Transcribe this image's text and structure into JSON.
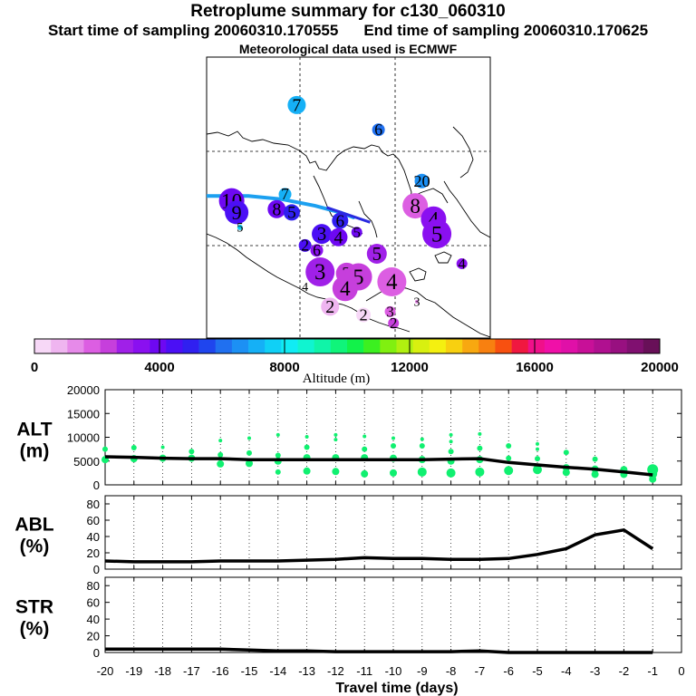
{
  "header": {
    "title": "Retroplume summary for c130_060310",
    "start_label": "Start time of sampling 20060310.170555",
    "end_label": "End time of sampling 20060310.170625",
    "met_label": "Meteorological data used is ECMWF"
  },
  "colorbar": {
    "colors": [
      "#f7d8f7",
      "#efb5f0",
      "#e68ae9",
      "#dc5ee2",
      "#c63fdc",
      "#a020e8",
      "#8a10f0",
      "#6e08f2",
      "#4b0ff5",
      "#3020f0",
      "#1f45ee",
      "#2070f0",
      "#1c90f4",
      "#15b0f6",
      "#10d0f6",
      "#10ecf4",
      "#10f4d0",
      "#10f4a8",
      "#10f47a",
      "#12f24a",
      "#3cf020",
      "#80f010",
      "#b0f010",
      "#d8f010",
      "#f4f010",
      "#f8d010",
      "#f8a810",
      "#f88010",
      "#f85010",
      "#f01840",
      "#f0108a",
      "#f010a8",
      "#e010a8",
      "#c81098",
      "#b01090",
      "#981080",
      "#801070",
      "#681058"
    ],
    "tick_labels": [
      "0",
      "4000",
      "8000",
      "12000",
      "16000",
      "20000"
    ],
    "label": "Altitude (m)"
  },
  "map": {
    "track_color": "#1ca0f0",
    "markers": [
      {
        "label": "7",
        "lon": -84.6,
        "lat": 27.1,
        "r": 10,
        "alt": 7200
      },
      {
        "label": "6",
        "lon": -79.7,
        "lat": 25.6,
        "r": 7,
        "alt": 6000
      },
      {
        "label": "20",
        "lon": -77.1,
        "lat": 22.5,
        "r": 8,
        "alt": 6800
      },
      {
        "label": "10",
        "lon": -88.5,
        "lat": 21.3,
        "r": 14,
        "alt": 4200
      },
      {
        "label": "9",
        "lon": -88.2,
        "lat": 20.6,
        "r": 13,
        "alt": 4600
      },
      {
        "label": "7",
        "lon": -85.3,
        "lat": 21.7,
        "r": 7,
        "alt": 7000
      },
      {
        "label": "8",
        "lon": -85.8,
        "lat": 20.8,
        "r": 10,
        "alt": 4000
      },
      {
        "label": "5",
        "lon": -84.9,
        "lat": 20.6,
        "r": 9,
        "alt": 4900
      },
      {
        "label": "8",
        "lon": -77.5,
        "lat": 21.0,
        "r": 14,
        "alt": 2000
      },
      {
        "label": "4",
        "lon": -76.4,
        "lat": 20.2,
        "r": 14,
        "alt": 3200
      },
      {
        "label": "5",
        "lon": -76.2,
        "lat": 19.3,
        "r": 16,
        "alt": 3400
      },
      {
        "label": "5",
        "lon": -88.0,
        "lat": 19.7,
        "r": 3,
        "alt": 7800
      },
      {
        "label": "6",
        "lon": -82.0,
        "lat": 20.1,
        "r": 9,
        "alt": 4800
      },
      {
        "label": "5",
        "lon": -81.0,
        "lat": 19.4,
        "r": 6,
        "alt": 3700
      },
      {
        "label": "3",
        "lon": -83.1,
        "lat": 19.3,
        "r": 11,
        "alt": 4300
      },
      {
        "label": "4",
        "lon": -82.1,
        "lat": 19.1,
        "r": 10,
        "alt": 3800
      },
      {
        "label": "2",
        "lon": -84.1,
        "lat": 18.6,
        "r": 7,
        "alt": 4300
      },
      {
        "label": "6",
        "lon": -83.4,
        "lat": 18.3,
        "r": 7,
        "alt": 3600
      },
      {
        "label": "5",
        "lon": -79.8,
        "lat": 18.1,
        "r": 11,
        "alt": 2700
      },
      {
        "label": "4",
        "lon": -74.7,
        "lat": 17.5,
        "r": 6,
        "alt": 3300
      },
      {
        "label": "3",
        "lon": -83.2,
        "lat": 17.0,
        "r": 16,
        "alt": 3000
      },
      {
        "label": "2",
        "lon": -81.6,
        "lat": 16.9,
        "r": 12,
        "alt": 2400
      },
      {
        "label": "5",
        "lon": -80.9,
        "lat": 16.7,
        "r": 15,
        "alt": 2500
      },
      {
        "label": "4",
        "lon": -78.9,
        "lat": 16.4,
        "r": 16,
        "alt": 1800
      },
      {
        "label": "4",
        "lon": -81.7,
        "lat": 16.0,
        "r": 14,
        "alt": 2200
      },
      {
        "label": "4",
        "lon": -84.1,
        "lat": 16.1,
        "r": 1,
        "alt": 1000
      },
      {
        "label": "3",
        "lon": -77.4,
        "lat": 15.2,
        "r": 2,
        "alt": 1500
      },
      {
        "label": "2",
        "lon": -82.6,
        "lat": 14.9,
        "r": 10,
        "alt": 700
      },
      {
        "label": "2",
        "lon": -80.6,
        "lat": 14.4,
        "r": 8,
        "alt": 500
      },
      {
        "label": "3",
        "lon": -79.0,
        "lat": 14.6,
        "r": 6,
        "alt": 1900
      },
      {
        "label": "2",
        "lon": -78.8,
        "lat": 13.9,
        "r": 6,
        "alt": 2600
      }
    ]
  },
  "chart_data": [
    {
      "type": "scatter",
      "name": "ALT",
      "ylabel": "ALT (m)",
      "xlabel": "Travel time (days)",
      "xlim": [
        -20,
        0
      ],
      "ylim": [
        0,
        20000
      ],
      "yticks": [
        0,
        5000,
        10000,
        15000,
        20000
      ],
      "line": {
        "x": [
          -20,
          -19,
          -18,
          -17,
          -16,
          -15,
          -14,
          -13,
          -12,
          -11,
          -10,
          -9,
          -8,
          -7,
          -6,
          -5,
          -4,
          -3,
          -2,
          -1
        ],
        "y": [
          5900,
          5800,
          5600,
          5500,
          5500,
          5300,
          5300,
          5300,
          5300,
          5300,
          5300,
          5300,
          5400,
          5500,
          4700,
          4200,
          3700,
          3300,
          2700,
          2100
        ]
      },
      "points": [
        {
          "x": -20,
          "y": 7500,
          "s": 3
        },
        {
          "x": -20,
          "y": 5300,
          "s": 4
        },
        {
          "x": -19,
          "y": 7800,
          "s": 3
        },
        {
          "x": -19,
          "y": 5500,
          "s": 4
        },
        {
          "x": -18,
          "y": 7900,
          "s": 2
        },
        {
          "x": -18,
          "y": 5600,
          "s": 4
        },
        {
          "x": -17,
          "y": 7000,
          "s": 3
        },
        {
          "x": -17,
          "y": 5600,
          "s": 4
        },
        {
          "x": -16,
          "y": 9300,
          "s": 2
        },
        {
          "x": -16,
          "y": 6300,
          "s": 3
        },
        {
          "x": -16,
          "y": 4400,
          "s": 4
        },
        {
          "x": -15,
          "y": 9800,
          "s": 2
        },
        {
          "x": -15,
          "y": 6700,
          "s": 3
        },
        {
          "x": -15,
          "y": 4500,
          "s": 4
        },
        {
          "x": -14,
          "y": 10500,
          "s": 2
        },
        {
          "x": -14,
          "y": 6200,
          "s": 3
        },
        {
          "x": -14,
          "y": 5000,
          "s": 4
        },
        {
          "x": -14,
          "y": 2700,
          "s": 3
        },
        {
          "x": -13,
          "y": 10100,
          "s": 2
        },
        {
          "x": -13,
          "y": 7900,
          "s": 3
        },
        {
          "x": -13,
          "y": 5700,
          "s": 4
        },
        {
          "x": -13,
          "y": 2900,
          "s": 4
        },
        {
          "x": -12,
          "y": 10500,
          "s": 2
        },
        {
          "x": -12,
          "y": 9500,
          "s": 2
        },
        {
          "x": -12,
          "y": 5700,
          "s": 4
        },
        {
          "x": -12,
          "y": 2800,
          "s": 4
        },
        {
          "x": -11,
          "y": 10200,
          "s": 2
        },
        {
          "x": -11,
          "y": 7500,
          "s": 3
        },
        {
          "x": -11,
          "y": 5700,
          "s": 4
        },
        {
          "x": -11,
          "y": 2300,
          "s": 4
        },
        {
          "x": -10,
          "y": 9800,
          "s": 2
        },
        {
          "x": -10,
          "y": 8200,
          "s": 3
        },
        {
          "x": -10,
          "y": 5600,
          "s": 4
        },
        {
          "x": -10,
          "y": 2500,
          "s": 4
        },
        {
          "x": -9,
          "y": 9600,
          "s": 2
        },
        {
          "x": -9,
          "y": 8200,
          "s": 3
        },
        {
          "x": -9,
          "y": 5300,
          "s": 4
        },
        {
          "x": -9,
          "y": 2700,
          "s": 5
        },
        {
          "x": -8,
          "y": 10500,
          "s": 2
        },
        {
          "x": -8,
          "y": 9100,
          "s": 2
        },
        {
          "x": -8,
          "y": 7000,
          "s": 3
        },
        {
          "x": -8,
          "y": 5000,
          "s": 4
        },
        {
          "x": -8,
          "y": 2500,
          "s": 5
        },
        {
          "x": -7,
          "y": 10700,
          "s": 2
        },
        {
          "x": -7,
          "y": 7700,
          "s": 3
        },
        {
          "x": -7,
          "y": 5300,
          "s": 4
        },
        {
          "x": -7,
          "y": 2700,
          "s": 5
        },
        {
          "x": -6,
          "y": 8200,
          "s": 3
        },
        {
          "x": -6,
          "y": 5600,
          "s": 3
        },
        {
          "x": -6,
          "y": 3000,
          "s": 5
        },
        {
          "x": -5,
          "y": 8600,
          "s": 2
        },
        {
          "x": -5,
          "y": 7500,
          "s": 2
        },
        {
          "x": -5,
          "y": 5500,
          "s": 3
        },
        {
          "x": -5,
          "y": 3200,
          "s": 5
        },
        {
          "x": -4,
          "y": 6800,
          "s": 3
        },
        {
          "x": -4,
          "y": 3600,
          "s": 4
        },
        {
          "x": -4,
          "y": 2600,
          "s": 4
        },
        {
          "x": -3,
          "y": 5400,
          "s": 3
        },
        {
          "x": -3,
          "y": 3300,
          "s": 4
        },
        {
          "x": -3,
          "y": 2200,
          "s": 4
        },
        {
          "x": -2,
          "y": 3200,
          "s": 4
        },
        {
          "x": -2,
          "y": 2200,
          "s": 4
        },
        {
          "x": -1,
          "y": 3200,
          "s": 6
        },
        {
          "x": -1,
          "y": 2300,
          "s": 5
        },
        {
          "x": -1,
          "y": 1200,
          "s": 4
        }
      ],
      "point_color": "#10f070"
    },
    {
      "type": "line",
      "name": "ABL",
      "ylabel": "ABL (%)",
      "xlim": [
        -20,
        0
      ],
      "ylim": [
        0,
        90
      ],
      "yticks": [
        0,
        20,
        40,
        60,
        80
      ],
      "x": [
        -20,
        -19,
        -18,
        -17,
        -16,
        -15,
        -14,
        -13,
        -12,
        -11,
        -10,
        -9,
        -8,
        -7,
        -6,
        -5,
        -4,
        -3,
        -2,
        -1
      ],
      "y": [
        10,
        9,
        9,
        9,
        10,
        10,
        10,
        11,
        12,
        14,
        13,
        13,
        12,
        12,
        13,
        18,
        25,
        42,
        48,
        25
      ]
    },
    {
      "type": "line",
      "name": "STR",
      "ylabel": "STR (%)",
      "xlim": [
        -20,
        0
      ],
      "ylim": [
        0,
        90
      ],
      "yticks": [
        0,
        20,
        40,
        60,
        80
      ],
      "x": [
        -20,
        -19,
        -18,
        -17,
        -16,
        -15,
        -14,
        -13,
        -12,
        -11,
        -10,
        -9,
        -8,
        -7,
        -6,
        -5,
        -4,
        -3,
        -2,
        -1
      ],
      "y": [
        4,
        4,
        4,
        4,
        4,
        3,
        2,
        2,
        1,
        1,
        1,
        1,
        1,
        2,
        0,
        0,
        0,
        0,
        0,
        0
      ],
      "xtick_labels": [
        "-20",
        "-19",
        "-18",
        "-17",
        "-16",
        "-15",
        "-14",
        "-13",
        "-12",
        "-11",
        "-10",
        "-9",
        "-8",
        "-7",
        "-6",
        "-5",
        "-4",
        "-3",
        "-2",
        "-1",
        "0"
      ]
    }
  ]
}
